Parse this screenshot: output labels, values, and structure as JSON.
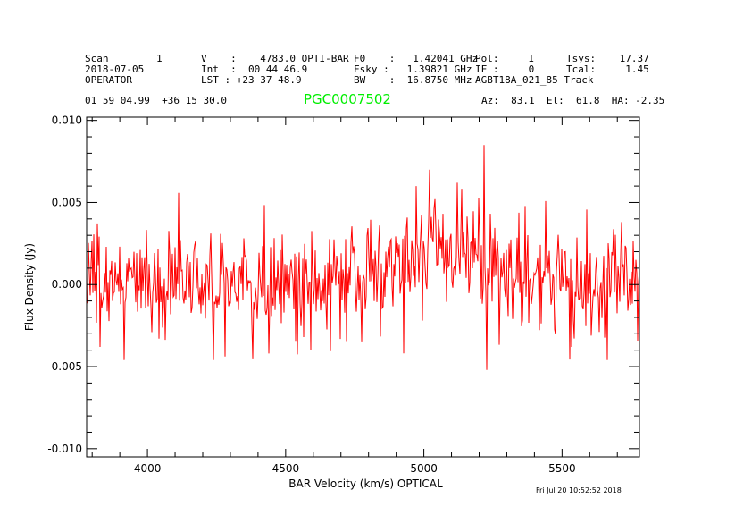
{
  "header": {
    "scan_label": "Scan",
    "scan_value": "1",
    "date": "2018-07-05",
    "operator": "OPERATOR",
    "v_line": "V    :    4783.0 OPTI-BAR",
    "int_line": "Int  :  00 44 46.9",
    "lst_line": "LST : +23 37 48.9",
    "f0_line": "F0    :   1.42041 GHz",
    "fsky_line": "Fsky :   1.39821 GHz",
    "bw_line": "BW    :  16.8750 MHz",
    "pol_line": "Pol:     I",
    "if_line": "IF :     0",
    "project_line": "AGBT18A_021_85 Track",
    "tsys_line": "Tsys:    17.37",
    "tcal_line": "Tcal:     1.45",
    "coords": "01 59 04.99  +36 15 30.0",
    "target_name": "PGC0007502",
    "azel": "Az:  83.1  El:  61.8  HA: -2.35",
    "timestamp": "Fri Jul 20 10:52:52 2018"
  },
  "colors": {
    "series": "#ff0000",
    "target": "#00ee00",
    "axes": "#000000"
  },
  "chart_data": {
    "type": "line",
    "title": "PGC0007502",
    "xlabel": "BAR Velocity (km/s) OPTICAL",
    "ylabel": "Flux Density (Jy)",
    "xlim": [
      3780,
      5780
    ],
    "ylim": [
      -0.0105,
      0.0102
    ],
    "xticks": [
      4000,
      4500,
      5000,
      5500
    ],
    "xtick_labels": [
      "4000",
      "4500",
      "5000",
      "5500"
    ],
    "yticks": [
      0.01,
      0.005,
      0.0,
      -0.005,
      -0.01
    ],
    "ytick_labels": [
      "0.010",
      "0.005",
      "0.000",
      "-0.005",
      "-0.010"
    ],
    "grid": false,
    "series": [
      {
        "name": "spectrum",
        "x_start": 3780,
        "x_end": 5780,
        "noise_sigma": 0.0018,
        "baseline": [
          [
            3780,
            0.0
          ],
          [
            4700,
            0.0
          ],
          [
            4800,
            0.0004
          ],
          [
            4900,
            0.001
          ],
          [
            4960,
            0.0016
          ],
          [
            5030,
            0.0022
          ],
          [
            5080,
            0.0017
          ],
          [
            5130,
            0.0019
          ],
          [
            5200,
            0.0016
          ],
          [
            5240,
            0.0012
          ],
          [
            5300,
            0.0008
          ],
          [
            5400,
            0.0002
          ],
          [
            5500,
            0.0
          ],
          [
            5780,
            0.0
          ]
        ],
        "features": [
          {
            "x": 5020,
            "y": 0.007
          },
          {
            "x": 5040,
            "y": 0.0052
          },
          {
            "x": 5120,
            "y": 0.0062
          },
          {
            "x": 5218,
            "y": 0.0085
          },
          {
            "x": 5228,
            "y": -0.0052
          },
          {
            "x": 4380,
            "y": -0.0045
          },
          {
            "x": 4440,
            "y": -0.0042
          },
          {
            "x": 4590,
            "y": -0.004
          },
          {
            "x": 3830,
            "y": -0.0038
          },
          {
            "x": 4995,
            "y": -0.0022
          }
        ]
      }
    ]
  }
}
